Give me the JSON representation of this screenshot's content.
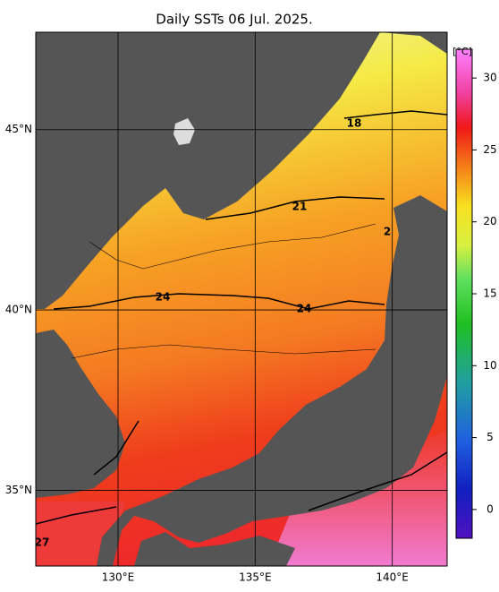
{
  "title": "Daily SSTs 06 Jul. 2025.",
  "map": {
    "xlim": [
      127,
      142
    ],
    "ylim": [
      32.9,
      47.7
    ],
    "xticks": [
      {
        "value": 130,
        "label": "130°E"
      },
      {
        "value": 135,
        "label": "135°E"
      },
      {
        "value": 140,
        "label": "140°E"
      }
    ],
    "yticks": [
      {
        "value": 35,
        "label": "35°N"
      },
      {
        "value": 40,
        "label": "40°N"
      },
      {
        "value": 45,
        "label": "45°N"
      }
    ]
  },
  "contour_labels": [
    "18",
    "21",
    "2",
    "24",
    "24",
    "27"
  ],
  "colorbar": {
    "unit": "[°C]",
    "range": [
      -2,
      32
    ],
    "ticks": [
      0,
      5,
      10,
      15,
      20,
      25,
      30
    ]
  }
}
